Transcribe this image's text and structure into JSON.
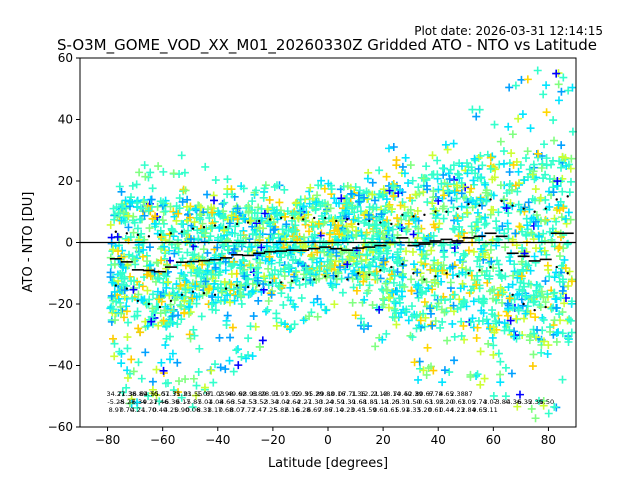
{
  "header": {
    "plot_date": "Plot date: 2026-03-31 12:14:15",
    "title": "S-O3M_GOME_VOD_XX_M01_20260330Z Gridded ATO - NTO vs Latitude"
  },
  "chart_data": {
    "type": "scatter",
    "title": "S-O3M_GOME_VOD_XX_M01_20260330Z Gridded ATO - NTO vs Latitude",
    "xlabel": "Latitude [degrees]",
    "ylabel": "ATO - NTO [DU]",
    "xlim": [
      -90,
      90
    ],
    "ylim": [
      -60,
      60
    ],
    "xticks": [
      -80,
      -60,
      -40,
      -20,
      0,
      20,
      40,
      60,
      80
    ],
    "yticks": [
      -60,
      -40,
      -20,
      0,
      20,
      40,
      60
    ],
    "zero_line": 0,
    "marker": "+",
    "palette": [
      "#0000ff",
      "#00a0ff",
      "#00e5ff",
      "#33ffcc",
      "#80ff80",
      "#ccff33",
      "#ffd700",
      "#ffcc00"
    ],
    "envelope": {
      "lat": [
        -78,
        -70,
        -60,
        -50,
        -40,
        -30,
        -20,
        -10,
        0,
        10,
        20,
        25,
        30,
        40,
        50,
        60,
        70,
        80,
        89
      ],
      "upper": [
        18,
        24,
        28,
        30,
        22,
        18,
        20,
        18,
        22,
        22,
        26,
        44,
        28,
        30,
        42,
        50,
        55,
        58,
        58
      ],
      "lower": [
        -50,
        -55,
        -52,
        -55,
        -45,
        -40,
        -30,
        -28,
        -22,
        -24,
        -40,
        -30,
        -45,
        -50,
        -45,
        -50,
        -55,
        -60,
        -55
      ],
      "core_upper": [
        12,
        14,
        14,
        13,
        12,
        12,
        12,
        14,
        15,
        16,
        18,
        20,
        20,
        24,
        28,
        30,
        30,
        30,
        28
      ],
      "core_lower": [
        -26,
        -28,
        -28,
        -24,
        -22,
        -18,
        -16,
        -14,
        -12,
        -12,
        -16,
        -24,
        -28,
        -28,
        -28,
        -30,
        -32,
        -34,
        -36
      ]
    },
    "series": [
      {
        "name": "mean",
        "marker": "-",
        "color": "#000000",
        "lat": [
          -77,
          -73,
          -69,
          -65,
          -61,
          -57,
          -53,
          -49,
          -45,
          -41,
          -37,
          -33,
          -29,
          -25,
          -21,
          -17,
          -13,
          -9,
          -5,
          -1,
          3,
          7,
          11,
          15,
          19,
          23,
          27,
          31,
          35,
          39,
          43,
          47,
          51,
          55,
          59,
          63,
          67,
          71,
          75,
          79,
          83,
          87
        ],
        "values": [
          -5.3,
          -6.3,
          -8.9,
          -9.1,
          -9.5,
          -8.0,
          -6.4,
          -6.2,
          -5.9,
          -5.6,
          -5.0,
          -4.0,
          -4.2,
          -3.5,
          -3.0,
          -2.8,
          -2.5,
          -2.5,
          -2.0,
          -1.5,
          -2.0,
          -2.5,
          -1.8,
          -1.5,
          -1.0,
          0.0,
          1.5,
          -1.0,
          -0.5,
          0.5,
          1.0,
          0.5,
          1.5,
          2.0,
          3.0,
          2.0,
          -3.5,
          -4.5,
          -6.0,
          -5.5,
          3.0,
          3.0
        ]
      },
      {
        "name": "upper_std",
        "marker": ".",
        "color": "#000000",
        "lat": [
          -77,
          -73,
          -69,
          -65,
          -61,
          -57,
          -53,
          -49,
          -45,
          -41,
          -37,
          -33,
          -29,
          -25,
          -21,
          -17,
          -13,
          -9,
          -5,
          -1,
          3,
          7,
          11,
          15,
          19,
          23,
          27,
          31,
          35,
          39,
          43,
          47,
          51,
          55,
          59,
          63,
          67,
          71,
          75,
          79,
          83,
          87
        ],
        "values": [
          3.5,
          3.0,
          2.5,
          2.0,
          2.5,
          3.0,
          3.5,
          4.5,
          5.0,
          5.5,
          5.0,
          6.0,
          6.5,
          7.0,
          7.5,
          8.0,
          8.0,
          7.5,
          8.0,
          8.0,
          7.0,
          7.5,
          6.0,
          7.0,
          6.5,
          6.0,
          9.0,
          8.5,
          9.0,
          10.0,
          10.0,
          11.0,
          12.5,
          12.0,
          14.0,
          13.5,
          12.0,
          11.0,
          10.0,
          11.0,
          14.0,
          15.0
        ]
      },
      {
        "name": "lower_std",
        "marker": ".",
        "color": "#000000",
        "lat": [
          -77,
          -73,
          -69,
          -65,
          -61,
          -57,
          -53,
          -49,
          -45,
          -41,
          -37,
          -33,
          -29,
          -25,
          -21,
          -17,
          -13,
          -9,
          -5,
          -1,
          3,
          7,
          11,
          15,
          19,
          23,
          27,
          31,
          35,
          39,
          43,
          47,
          51,
          55,
          59,
          63,
          67,
          71,
          75,
          79,
          83,
          87
        ],
        "values": [
          -14.0,
          -15.0,
          -19.0,
          -20.0,
          -21.0,
          -19.0,
          -17.0,
          -16.0,
          -16.5,
          -17.0,
          -15.0,
          -14.0,
          -14.5,
          -14.0,
          -13.0,
          -13.0,
          -12.5,
          -12.0,
          -12.0,
          -11.0,
          -11.0,
          -12.0,
          -10.0,
          -10.5,
          -9.0,
          -8.0,
          -7.0,
          -10.0,
          -12.0,
          -11.0,
          -10.0,
          -11.0,
          -10.0,
          -9.0,
          -8.0,
          -9.0,
          -17.0,
          -20.0,
          -22.0,
          -21.0,
          -8.0,
          -10.0
        ]
      }
    ],
    "annotations": {
      "lat": [
        -77,
        -73,
        -69,
        -65,
        -61,
        -57,
        -53,
        -49,
        -45,
        -41,
        -37,
        -33,
        -29,
        -25,
        -21,
        -17,
        -13,
        -9,
        -5,
        -1,
        3,
        7,
        11,
        15,
        19,
        23,
        27,
        31,
        35,
        39,
        43,
        47,
        51,
        55,
        59,
        63,
        67,
        71,
        75,
        79,
        83,
        87
      ],
      "row1": [
        "34.27",
        "71.38",
        "36.89",
        "64.70",
        "55.07",
        "51.35",
        "71.23",
        "91.55",
        "1.07",
        "81.03",
        "2.98",
        "49.62",
        "98.93",
        "8.89",
        "28.91",
        "3.91",
        "3.92",
        "59.31",
        "95.29",
        "89.88",
        "10.16",
        "07.71",
        "1.36",
        "12.21",
        "2.13",
        "48.14",
        "70.40",
        "52.39",
        "80.67",
        "6.78",
        "4.65",
        "2.38",
        "87",
        "",
        "",
        "",
        "",
        "",
        "",
        "",
        "",
        ""
      ],
      "row2": [
        "-5.28",
        "-5.27",
        "-6.34",
        "-9.21",
        "-7.46",
        "-6.39",
        "-6.17",
        "-5.87",
        "-5.01",
        "-4.08",
        "-4.66",
        "-3.54",
        "-2.53",
        "-3.52",
        "-3.34",
        "-3.04",
        "-2.64",
        "-2.27",
        "-1.30",
        "-3.24",
        "-0.59",
        "-1.39",
        "-1.68",
        "-1.85",
        "-1.18",
        "-1.25",
        "0.30",
        "1.50",
        "-0.63",
        "-1.95",
        "2.20",
        "-0.63",
        "1.05",
        "2.74",
        "3.07",
        "-3.80",
        "-4.36",
        "-6.35",
        "-2.39",
        "-5.50",
        "",
        ""
      ],
      "row3": [
        "8.97",
        "0.70",
        "4.24",
        "1.70",
        "0.40",
        "4.25",
        "0.90",
        "0.06",
        "8.31",
        "8.17",
        "0.68",
        "8.07",
        "7.72",
        "7.47",
        "7.25",
        "5.82",
        "6.16",
        "6.28",
        "6.69",
        "7.86",
        "7.14",
        "0.23",
        "0.45",
        "1.59",
        "0.60",
        "1.61",
        "5.91",
        "4.33",
        "5.20",
        "0.61",
        "0.44",
        "4.23",
        "2.84",
        "9.65",
        "3.11",
        "",
        "",
        "",
        "",
        "",
        "",
        ""
      ]
    }
  }
}
